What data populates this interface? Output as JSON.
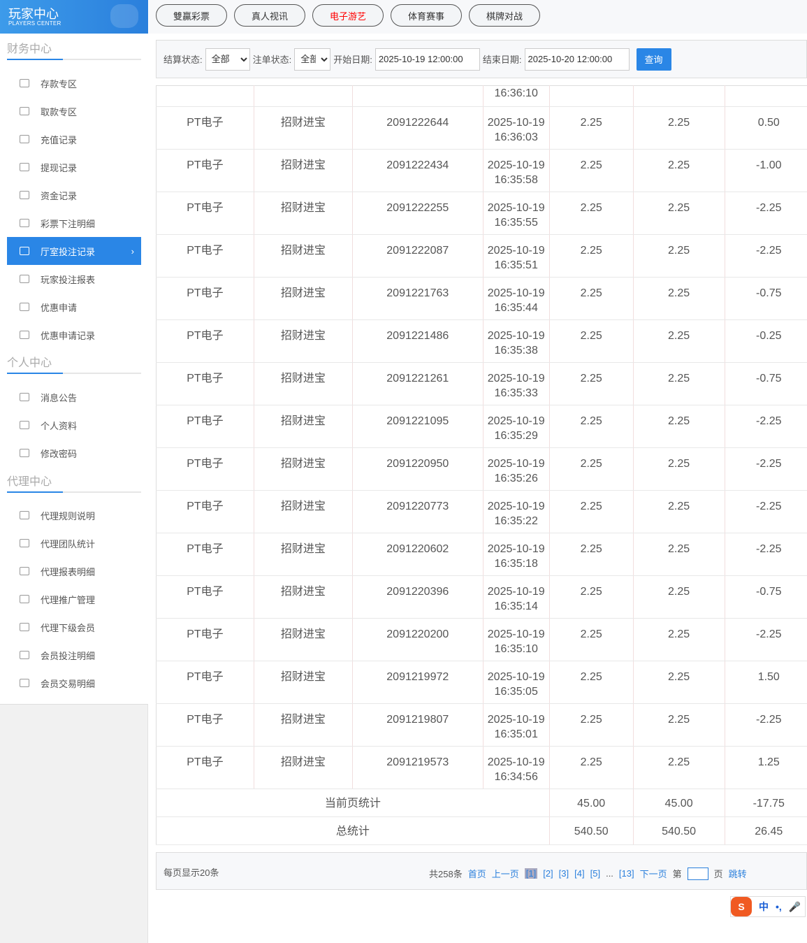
{
  "logo": {
    "title": "玩家中心",
    "subtitle": "PLAYERS CENTER"
  },
  "sections": [
    {
      "title": "财务中心",
      "items": [
        "存款专区",
        "取款专区",
        "充值记录",
        "提现记录",
        "资金记录",
        "彩票下注明细",
        "厅室投注记录",
        "玩家投注报表",
        "优惠申请",
        "优惠申请记录"
      ]
    },
    {
      "title": "个人中心",
      "items": [
        "消息公告",
        "个人资料",
        "修改密码"
      ]
    },
    {
      "title": "代理中心",
      "items": [
        "代理规则说明",
        "代理团队统计",
        "代理报表明细",
        "代理推广管理",
        "代理下级会员",
        "会员投注明细",
        "会员交易明细"
      ]
    }
  ],
  "active_item": "厅室投注记录",
  "top_tabs": [
    "雙贏彩票",
    "真人视讯",
    "电子游艺",
    "体育赛事",
    "棋牌对战"
  ],
  "active_tab": "电子游艺",
  "accent": "#2a86e6",
  "filter": {
    "settle_label": "结算状态:",
    "settle_value": "全部",
    "order_label": "注单状态:",
    "order_value": "全部",
    "start_label": "开始日期:",
    "start_value": "2025-10-19 12:00:00",
    "end_label": "结束日期:",
    "end_value": "2025-10-20 12:00:00",
    "query": "查询"
  },
  "partial_row_time": "16:36:10",
  "rows": [
    [
      "PT电子",
      "招财进宝",
      "2091222644",
      "2025-10-19",
      "16:36:03",
      "2.25",
      "2.25",
      "0.50"
    ],
    [
      "PT电子",
      "招财进宝",
      "2091222434",
      "2025-10-19",
      "16:35:58",
      "2.25",
      "2.25",
      "-1.00"
    ],
    [
      "PT电子",
      "招财进宝",
      "2091222255",
      "2025-10-19",
      "16:35:55",
      "2.25",
      "2.25",
      "-2.25"
    ],
    [
      "PT电子",
      "招财进宝",
      "2091222087",
      "2025-10-19",
      "16:35:51",
      "2.25",
      "2.25",
      "-2.25"
    ],
    [
      "PT电子",
      "招财进宝",
      "2091221763",
      "2025-10-19",
      "16:35:44",
      "2.25",
      "2.25",
      "-0.75"
    ],
    [
      "PT电子",
      "招财进宝",
      "2091221486",
      "2025-10-19",
      "16:35:38",
      "2.25",
      "2.25",
      "-0.25"
    ],
    [
      "PT电子",
      "招财进宝",
      "2091221261",
      "2025-10-19",
      "16:35:33",
      "2.25",
      "2.25",
      "-0.75"
    ],
    [
      "PT电子",
      "招财进宝",
      "2091221095",
      "2025-10-19",
      "16:35:29",
      "2.25",
      "2.25",
      "-2.25"
    ],
    [
      "PT电子",
      "招财进宝",
      "2091220950",
      "2025-10-19",
      "16:35:26",
      "2.25",
      "2.25",
      "-2.25"
    ],
    [
      "PT电子",
      "招财进宝",
      "2091220773",
      "2025-10-19",
      "16:35:22",
      "2.25",
      "2.25",
      "-2.25"
    ],
    [
      "PT电子",
      "招财进宝",
      "2091220602",
      "2025-10-19",
      "16:35:18",
      "2.25",
      "2.25",
      "-2.25"
    ],
    [
      "PT电子",
      "招财进宝",
      "2091220396",
      "2025-10-19",
      "16:35:14",
      "2.25",
      "2.25",
      "-0.75"
    ],
    [
      "PT电子",
      "招财进宝",
      "2091220200",
      "2025-10-19",
      "16:35:10",
      "2.25",
      "2.25",
      "-2.25"
    ],
    [
      "PT电子",
      "招财进宝",
      "2091219972",
      "2025-10-19",
      "16:35:05",
      "2.25",
      "2.25",
      "1.50"
    ],
    [
      "PT电子",
      "招财进宝",
      "2091219807",
      "2025-10-19",
      "16:35:01",
      "2.25",
      "2.25",
      "-2.25"
    ],
    [
      "PT电子",
      "招财进宝",
      "2091219573",
      "2025-10-19",
      "16:34:56",
      "2.25",
      "2.25",
      "1.25"
    ]
  ],
  "summary": [
    {
      "label": "当前页统计",
      "values": [
        "45.00",
        "45.00",
        "-17.75"
      ]
    },
    {
      "label": "总统计",
      "values": [
        "540.50",
        "540.50",
        "26.45"
      ]
    }
  ],
  "pager": {
    "per_page": "每页显示20条",
    "total": "共258条",
    "first": "首页",
    "prev": "上一页",
    "pages": [
      "[1]",
      "[2]",
      "[3]",
      "[4]",
      "[5]"
    ],
    "ellipsis": "...",
    "last_page": "[13]",
    "next": "下一页",
    "goto_prefix": "第",
    "goto_suffix": "页",
    "jump": "跳转"
  },
  "ime": {
    "lang": "中",
    "punct": "•,"
  }
}
